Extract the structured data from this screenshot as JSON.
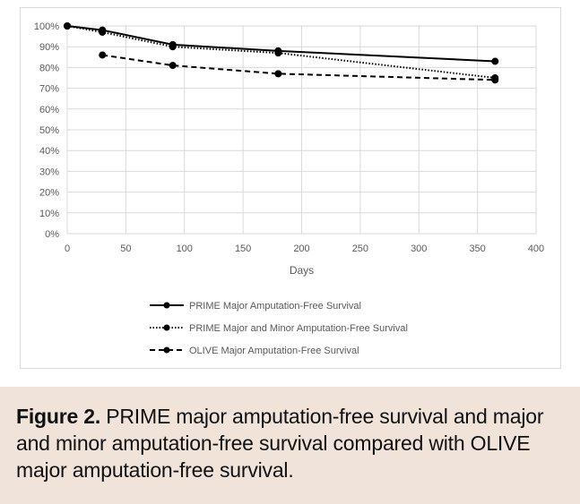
{
  "chart_data": {
    "type": "line",
    "title": "",
    "xlabel": "Days",
    "ylabel": "",
    "xlim": [
      0,
      400
    ],
    "ylim": [
      0,
      100
    ],
    "xticks": [
      0,
      50,
      100,
      150,
      200,
      250,
      300,
      350,
      400
    ],
    "yticks": [
      "0%",
      "10%",
      "20%",
      "30%",
      "40%",
      "50%",
      "60%",
      "70%",
      "80%",
      "90%",
      "100%"
    ],
    "grid": true,
    "legend_position": "bottom",
    "series": [
      {
        "name": "PRIME Major Amputation-Free Survival",
        "style": "solid",
        "x": [
          0,
          30,
          90,
          180,
          365
        ],
        "y": [
          100,
          98,
          91,
          88,
          83
        ]
      },
      {
        "name": "PRIME Major and Minor Amputation-Free Survival",
        "style": "dotted",
        "x": [
          0,
          30,
          90,
          180,
          365
        ],
        "y": [
          100,
          97,
          90,
          87,
          75
        ]
      },
      {
        "name": "OLIVE Major Amputation-Free Survival",
        "style": "dashed",
        "x": [
          30,
          90,
          180,
          365
        ],
        "y": [
          86,
          81,
          77,
          74
        ]
      }
    ]
  },
  "caption": {
    "label": "Figure 2.",
    "text": " PRIME major amputation-free survival and major and minor amputation-free survival compared with OLIVE major amputation-free survival."
  }
}
